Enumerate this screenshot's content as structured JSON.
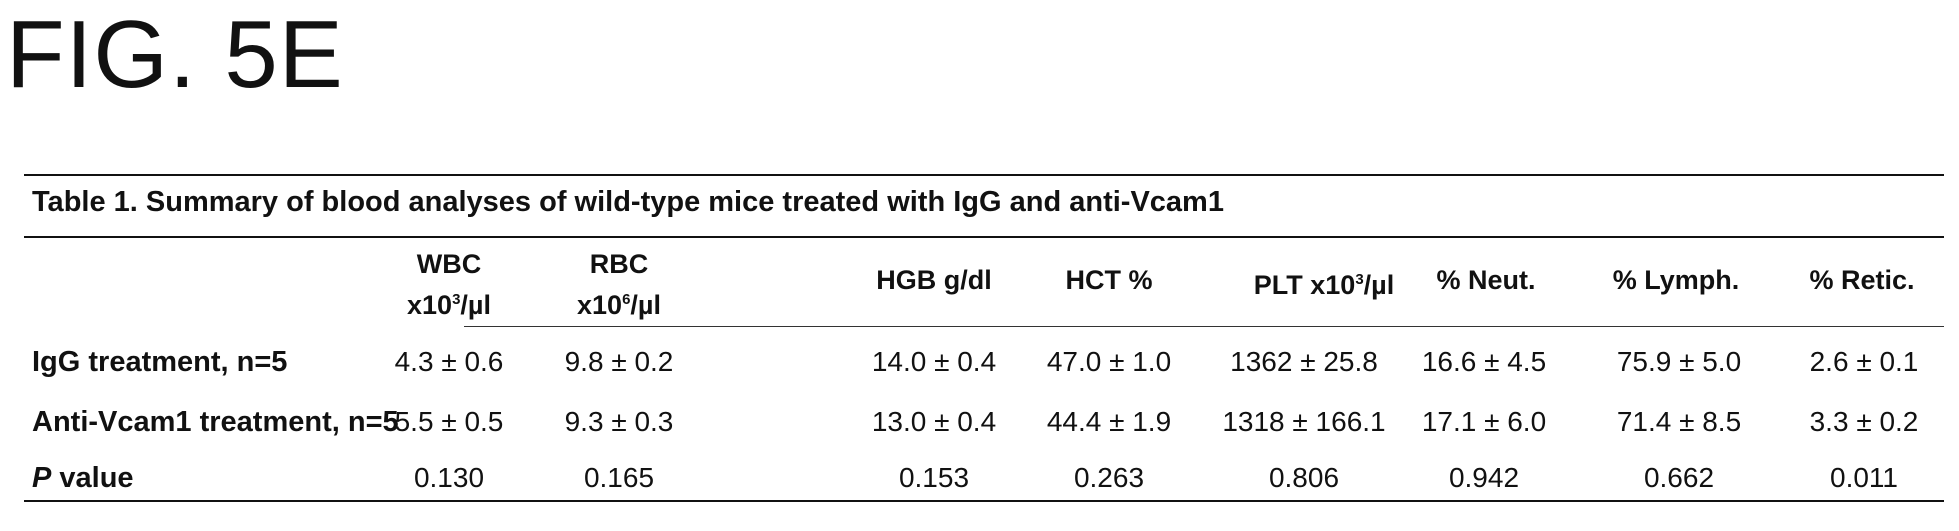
{
  "figure_label": "FIG. 5E",
  "table": {
    "caption": "Table 1. Summary of blood analyses of wild-type mice treated with IgG and anti-Vcam1",
    "columns": [
      {
        "line1": "WBC",
        "line2_pre": "x10",
        "line2_sup": "3",
        "line2_post": "/µl"
      },
      {
        "line1": "RBC",
        "line2_pre": "x10",
        "line2_sup": "6",
        "line2_post": "/µl"
      },
      {
        "label": "HGB g/dl"
      },
      {
        "label": "HCT %"
      },
      {
        "label_pre": "PLT x10",
        "label_sup": "3",
        "label_post": "/µl"
      },
      {
        "label": "% Neut."
      },
      {
        "label": "% Lymph."
      },
      {
        "label": "% Retic."
      }
    ],
    "rows": [
      {
        "label": "IgG treatment, n=5",
        "values": [
          "4.3 ± 0.6",
          "9.8 ± 0.2",
          "14.0 ± 0.4",
          "47.0 ± 1.0",
          "1362 ± 25.8",
          "16.6 ± 4.5",
          "75.9 ± 5.0",
          "2.6 ± 0.1"
        ]
      },
      {
        "label": "Anti-Vcam1 treatment, n=5",
        "values": [
          "5.5 ± 0.5",
          "9.3 ± 0.3",
          "13.0 ± 0.4",
          "44.4 ± 1.9",
          "1318 ± 166.1",
          "17.1 ± 6.0",
          "71.4 ± 8.5",
          "3.3 ± 0.2"
        ]
      },
      {
        "label_italic": "P",
        "label": " value",
        "values": [
          "0.130",
          "0.165",
          "0.153",
          "0.263",
          "0.806",
          "0.942",
          "0.662",
          "0.011"
        ]
      }
    ]
  }
}
